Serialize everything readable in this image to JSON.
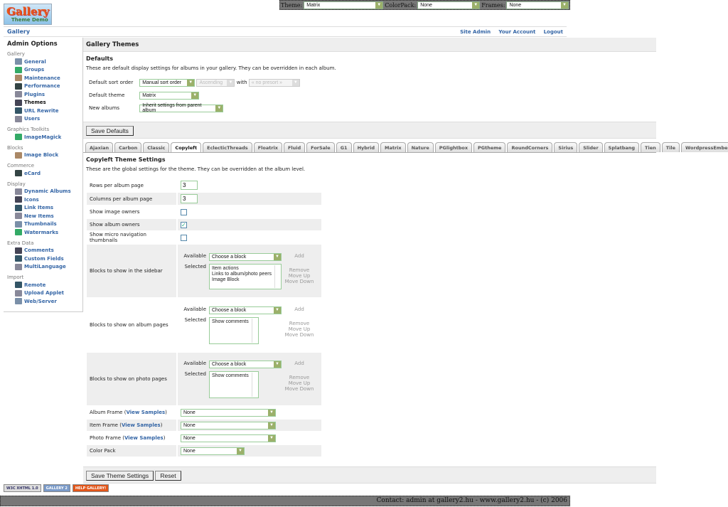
{
  "logo": {
    "title": "Gallery",
    "subtitle": "Theme Demo"
  },
  "topbar": {
    "theme_label": "Theme:",
    "theme_value": "Matrix",
    "colorpack_label": "ColorPack:",
    "colorpack_value": "None",
    "frames_label": "Frames:",
    "frames_value": "None"
  },
  "nav": {
    "breadcrumb": "Gallery",
    "links": [
      "Site Admin",
      "Your Account",
      "Logout"
    ]
  },
  "sidebar": {
    "title": "Admin Options",
    "groups": [
      {
        "label": "Gallery",
        "items": [
          "General",
          "Groups",
          "Maintenance",
          "Performance",
          "Plugins",
          "Themes",
          "URL Rewrite",
          "Users"
        ]
      },
      {
        "label": "Graphics Toolkits",
        "items": [
          "ImageMagick"
        ]
      },
      {
        "label": "Blocks",
        "items": [
          "Image Block"
        ]
      },
      {
        "label": "Commerce",
        "items": [
          "eCard"
        ]
      },
      {
        "label": "Display",
        "items": [
          "Dynamic Albums",
          "Icons",
          "Link Items",
          "New Items",
          "Thumbnails",
          "Watermarks"
        ]
      },
      {
        "label": "Extra Data",
        "items": [
          "Comments",
          "Custom Fields",
          "MultiLanguage"
        ]
      },
      {
        "label": "Import",
        "items": [
          "Remote",
          "Upload Applet",
          "Web/Server"
        ]
      }
    ],
    "current": "Themes"
  },
  "main": {
    "title": "Gallery Themes",
    "defaults": {
      "heading": "Defaults",
      "description": "These are default display settings for albums in your gallery. They can be overridden in each album.",
      "sort_label": "Default sort order",
      "sort_value": "Manual sort order",
      "direction_value": "Ascending",
      "with_label": "with",
      "presort_value": "« no presort »",
      "theme_label": "Default theme",
      "theme_value": "Matrix",
      "new_albums_label": "New albums",
      "new_albums_value": "Inherit settings from parent album",
      "save_label": "Save Defaults"
    },
    "tabs": [
      "Ajaxian",
      "Carbon",
      "Classic",
      "Copyleft",
      "EclecticThreads",
      "Floatrix",
      "Fluid",
      "ForSale",
      "G1",
      "Hybrid",
      "Matrix",
      "Nature",
      "PGlightbox",
      "PGtheme",
      "RoundCorners",
      "Sirius",
      "Slider",
      "Splatbang",
      "Tien",
      "Tile",
      "WordpressEmbedded"
    ],
    "active_tab": "Copyleft",
    "settings": {
      "heading": "Copyleft Theme Settings",
      "description": "These are the global settings for the theme. They can be overridden at the album level.",
      "rows_label": "Rows per album page",
      "rows_value": "3",
      "cols_label": "Columns per album page",
      "cols_value": "3",
      "image_owners_label": "Show image owners",
      "image_owners": false,
      "album_owners_label": "Show album owners",
      "album_owners": true,
      "micro_label": "Show micro navigation thumbnails",
      "micro": false,
      "available_label": "Available",
      "selected_label": "Selected",
      "choose": "Choose a block",
      "add": "Add",
      "remove": "Remove",
      "move_up": "Move Up",
      "move_down": "Move Down",
      "blocks": [
        {
          "label": "Blocks to show in the sidebar",
          "selected": [
            "Item actions",
            "Links to album/photo peers",
            "Image Block"
          ]
        },
        {
          "label": "Blocks to show on album pages",
          "selected": [
            "Show comments"
          ]
        },
        {
          "label": "Blocks to show on photo pages",
          "selected": [
            "Show comments"
          ]
        }
      ],
      "view_samples": "View Samples",
      "album_frame_label": "Album Frame",
      "album_frame": "None",
      "item_frame_label": "Item Frame",
      "item_frame": "None",
      "photo_frame_label": "Photo Frame",
      "photo_frame": "None",
      "color_pack_label": "Color Pack",
      "color_pack": "None",
      "save_label": "Save Theme Settings",
      "reset_label": "Reset"
    }
  },
  "badges": [
    "W3C XHTML 1.0",
    "GALLERY 2",
    "HELP GALLERY!"
  ],
  "footer": "Contact: admin at gallery2.hu - www.gallery2.hu - (c) 2006"
}
